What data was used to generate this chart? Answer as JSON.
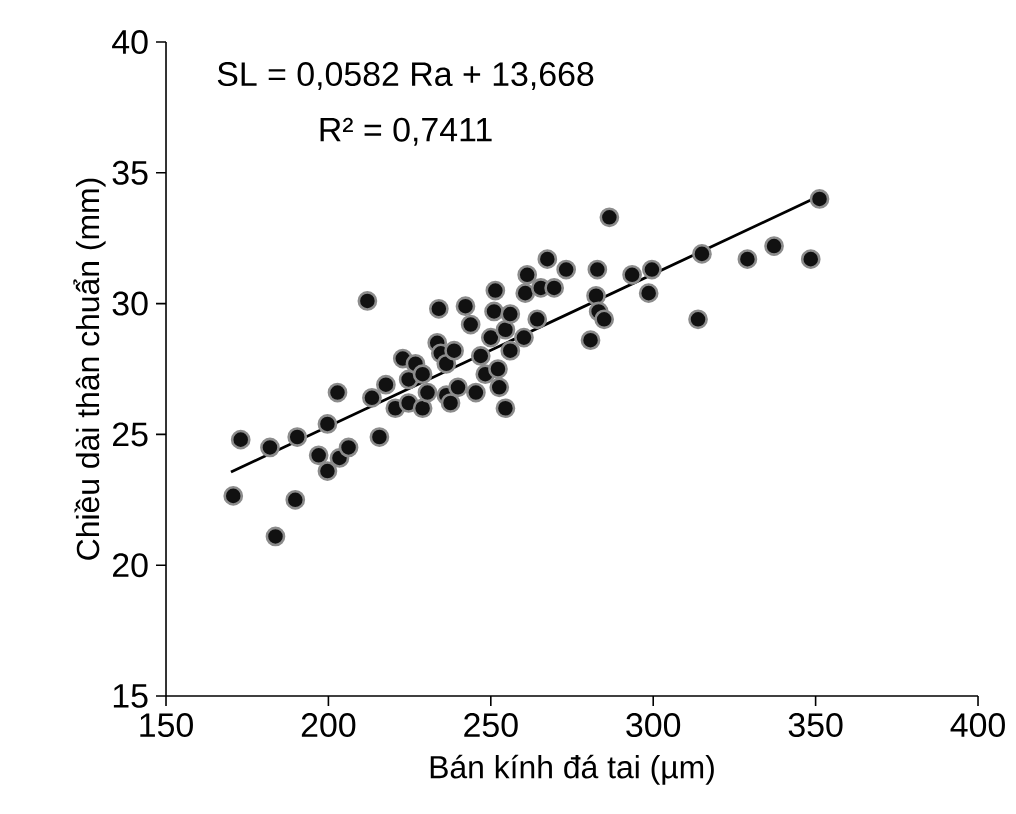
{
  "chart_data": {
    "type": "scatter",
    "xlabel": "Bán kính đá tai (µm)",
    "ylabel": "Chiều dài thân chuẩn (mm)",
    "annotations": [
      "SL = 0,0582 Ra + 13,668",
      "R² = 0,7411"
    ],
    "xlim": [
      150,
      400
    ],
    "ylim": [
      15,
      40
    ],
    "xticks": [
      150,
      200,
      250,
      300,
      350,
      400
    ],
    "yticks": [
      15,
      20,
      25,
      30,
      35,
      40
    ],
    "grid": false,
    "series": [
      {
        "color": "#111111",
        "x": [
          170.7,
          173,
          182,
          183.7,
          189.8,
          190.4,
          197,
          199.7,
          199.7,
          202.8,
          203.4,
          206.2,
          212,
          213.4,
          215.7,
          217.7,
          220.6,
          222.9,
          224.7,
          224.7,
          226.8,
          229,
          229,
          230.5,
          233.5,
          234,
          234.6,
          236.3,
          236.3,
          237.6,
          238.7,
          239.9,
          242.2,
          243.8,
          245.4,
          246.9,
          248.3,
          250,
          251.4,
          251,
          252.2,
          252.6,
          254.5,
          254.5,
          256,
          256,
          260.2,
          260.6,
          261.2,
          264.3,
          265.4,
          267.4,
          269.5,
          273.2,
          280.7,
          282.8,
          282.4,
          283.2,
          284.9,
          286.5,
          293.5,
          298.6,
          299.6,
          313.8,
          315,
          329,
          337.2,
          348.5,
          351.2
        ],
        "values": [
          22.65,
          24.8,
          24.5,
          21.1,
          22.5,
          24.9,
          24.2,
          23.6,
          25.4,
          26.6,
          24.1,
          24.5,
          30.1,
          26.4,
          24.9,
          26.9,
          26.0,
          27.9,
          27.1,
          26.2,
          27.7,
          27.3,
          26.0,
          26.6,
          28.5,
          29.8,
          28.1,
          27.7,
          26.5,
          26.2,
          28.2,
          26.8,
          29.9,
          29.2,
          26.6,
          28.0,
          27.3,
          28.7,
          30.5,
          29.7,
          27.5,
          26.8,
          29.0,
          26.0,
          28.2,
          29.6,
          28.7,
          30.4,
          31.1,
          29.4,
          30.6,
          31.7,
          30.6,
          31.3,
          28.6,
          31.3,
          30.3,
          29.7,
          29.4,
          33.3,
          31.1,
          30.4,
          31.3,
          29.4,
          31.9,
          31.7,
          32.2,
          31.7,
          34.0
        ]
      },
      {
        "type": "line",
        "marker": "none",
        "color": "#000000",
        "x": [
          170,
          351
        ],
        "values": [
          23.56,
          34.1
        ]
      }
    ]
  }
}
